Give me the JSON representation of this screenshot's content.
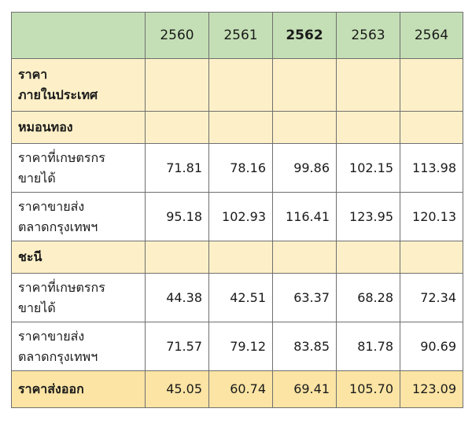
{
  "years": [
    "2560",
    "2561",
    "2562",
    "2563",
    "2564"
  ],
  "rows": [
    {
      "type": "group",
      "label_lines": [
        "ราคา",
        "ภายในประเทศ"
      ],
      "values": [
        "",
        "",
        "",
        "",
        ""
      ]
    },
    {
      "type": "group",
      "label_lines": [
        "หมอนทอง"
      ],
      "values": [
        "",
        "",
        "",
        "",
        ""
      ]
    },
    {
      "type": "body",
      "label_lines": [
        "ราคาที่เกษตรกร",
        "ขายได้"
      ],
      "values": [
        "71.81",
        "78.16",
        "99.86",
        "102.15",
        "113.98"
      ]
    },
    {
      "type": "body",
      "label_lines": [
        "ราคาขายส่ง",
        "ตลาดกรุงเทพฯ"
      ],
      "values": [
        "95.18",
        "102.93",
        "116.41",
        "123.95",
        "120.13"
      ]
    },
    {
      "type": "group",
      "label_lines": [
        "ชะนี"
      ],
      "values": [
        "",
        "",
        "",
        "",
        ""
      ]
    },
    {
      "type": "body",
      "label_lines": [
        "ราคาที่เกษตรกร",
        "ขายได้"
      ],
      "values": [
        "44.38",
        "42.51",
        "63.37",
        "68.28",
        "72.34"
      ]
    },
    {
      "type": "body",
      "label_lines": [
        "ราคาขายส่ง",
        "ตลาดกรุงเทพฯ"
      ],
      "values": [
        "71.57",
        "79.12",
        "83.85",
        "81.78",
        "90.69"
      ]
    },
    {
      "type": "export",
      "label_lines": [
        "ราคาส่งออก"
      ],
      "values": [
        "45.05",
        "60.74",
        "69.41",
        "105.70",
        "123.09"
      ]
    }
  ]
}
